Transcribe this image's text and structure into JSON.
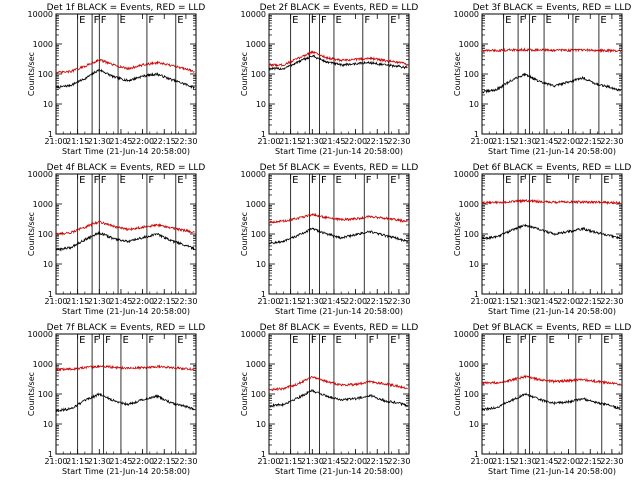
{
  "chart_data": [
    {
      "type": "line",
      "title": "Det 1f BLACK = Events, RED = LLD",
      "xlabel": "Start Time (21-Jun-14 20:58:00)",
      "ylabel": "Counts/sec",
      "xlim": [
        "21:00",
        "22:37"
      ],
      "ylim": [
        1,
        10000
      ],
      "yscale": "log",
      "xticks": [
        "21:00",
        "21:15",
        "21:30",
        "21:45",
        "22:00",
        "22:15",
        "22:30"
      ],
      "yticks": [
        "1",
        "10",
        "100",
        "1000",
        "10000"
      ],
      "x": [
        "21:00",
        "21:10",
        "21:20",
        "21:30",
        "21:40",
        "21:50",
        "22:00",
        "22:10",
        "22:20",
        "22:30",
        "22:36"
      ],
      "series": [
        {
          "color": "#000000",
          "values": [
            35,
            42,
            70,
            140,
            80,
            60,
            85,
            100,
            65,
            45,
            35
          ]
        },
        {
          "color": "#cc0000",
          "values": [
            110,
            120,
            180,
            300,
            200,
            150,
            200,
            240,
            190,
            150,
            120
          ]
        }
      ],
      "markers": [
        {
          "time": "21:15",
          "label": "E"
        },
        {
          "time": "21:25",
          "label": "F"
        },
        {
          "time": "21:30",
          "label": "F"
        },
        {
          "time": "21:43",
          "label": "E"
        },
        {
          "time": "22:03",
          "label": "F"
        },
        {
          "time": "22:23",
          "label": "E"
        }
      ]
    },
    {
      "type": "line",
      "title": "Det 2f BLACK = Events, RED = LLD",
      "xlabel": "Start Time (21-Jun-14 20:58:00)",
      "ylabel": "Counts/sec",
      "xlim": [
        "21:00",
        "22:37"
      ],
      "ylim": [
        1,
        10000
      ],
      "yscale": "log",
      "xticks": [
        "21:00",
        "21:15",
        "21:30",
        "21:45",
        "22:00",
        "22:15",
        "22:30"
      ],
      "yticks": [
        "1",
        "10",
        "100",
        "1000",
        "10000"
      ],
      "x": [
        "21:00",
        "21:10",
        "21:20",
        "21:30",
        "21:40",
        "21:50",
        "22:00",
        "22:10",
        "22:20",
        "22:30",
        "22:36"
      ],
      "series": [
        {
          "color": "#000000",
          "values": [
            150,
            150,
            250,
            400,
            250,
            200,
            220,
            240,
            200,
            180,
            160
          ]
        },
        {
          "color": "#cc0000",
          "values": [
            200,
            200,
            330,
            550,
            350,
            280,
            310,
            340,
            280,
            240,
            210
          ]
        }
      ],
      "markers": [
        {
          "time": "21:15",
          "label": "E"
        },
        {
          "time": "21:28",
          "label": "F"
        },
        {
          "time": "21:35",
          "label": "F"
        },
        {
          "time": "21:45",
          "label": "E"
        },
        {
          "time": "22:05",
          "label": "F"
        },
        {
          "time": "22:23",
          "label": "E"
        }
      ]
    },
    {
      "type": "line",
      "title": "Det 3f BLACK = Events, RED = LLD",
      "xlabel": "Start Time (21-Jun-14 20:58:00)",
      "ylabel": "Counts/sec",
      "xlim": [
        "21:00",
        "22:37"
      ],
      "ylim": [
        1,
        10000
      ],
      "yscale": "log",
      "xticks": [
        "21:00",
        "21:15",
        "21:30",
        "21:45",
        "22:00",
        "22:15",
        "22:30"
      ],
      "yticks": [
        "1",
        "10",
        "100",
        "1000",
        "10000"
      ],
      "x": [
        "21:00",
        "21:10",
        "21:20",
        "21:30",
        "21:40",
        "21:50",
        "22:00",
        "22:10",
        "22:20",
        "22:30",
        "22:36"
      ],
      "series": [
        {
          "color": "#000000",
          "values": [
            25,
            30,
            60,
            100,
            55,
            40,
            55,
            75,
            45,
            35,
            28
          ]
        },
        {
          "color": "#cc0000",
          "values": [
            600,
            610,
            630,
            650,
            630,
            620,
            620,
            630,
            610,
            600,
            590
          ]
        }
      ],
      "markers": [
        {
          "time": "21:15",
          "label": "E"
        },
        {
          "time": "21:25",
          "label": "F"
        },
        {
          "time": "21:33",
          "label": "F"
        },
        {
          "time": "21:43",
          "label": "E"
        },
        {
          "time": "22:03",
          "label": "F"
        },
        {
          "time": "22:21",
          "label": "E"
        }
      ]
    },
    {
      "type": "line",
      "title": "Det 4f BLACK = Events, RED = LLD",
      "xlabel": "Start Time (21-Jun-14 20:58:00)",
      "ylabel": "Counts/sec",
      "xlim": [
        "21:00",
        "22:37"
      ],
      "ylim": [
        1,
        10000
      ],
      "yscale": "log",
      "xticks": [
        "21:00",
        "21:15",
        "21:30",
        "21:45",
        "22:00",
        "22:15",
        "22:30"
      ],
      "yticks": [
        "1",
        "10",
        "100",
        "1000",
        "10000"
      ],
      "x": [
        "21:00",
        "21:10",
        "21:20",
        "21:30",
        "21:40",
        "21:50",
        "22:00",
        "22:10",
        "22:20",
        "22:30",
        "22:36"
      ],
      "series": [
        {
          "color": "#000000",
          "values": [
            30,
            35,
            65,
            110,
            70,
            55,
            75,
            100,
            60,
            42,
            32
          ]
        },
        {
          "color": "#cc0000",
          "values": [
            100,
            110,
            170,
            260,
            180,
            140,
            170,
            200,
            160,
            130,
            110
          ]
        }
      ],
      "markers": [
        {
          "time": "21:15",
          "label": "E"
        },
        {
          "time": "21:25",
          "label": "F"
        },
        {
          "time": "21:30",
          "label": "F"
        },
        {
          "time": "21:43",
          "label": "E"
        },
        {
          "time": "22:03",
          "label": "F"
        },
        {
          "time": "22:23",
          "label": "E"
        }
      ]
    },
    {
      "type": "line",
      "title": "Det 5f BLACK = Events, RED = LLD",
      "xlabel": "Start Time (21-Jun-14 20:58:00)",
      "ylabel": "Counts/sec",
      "xlim": [
        "21:00",
        "22:37"
      ],
      "ylim": [
        1,
        10000
      ],
      "yscale": "log",
      "xticks": [
        "21:00",
        "21:15",
        "21:30",
        "21:45",
        "22:00",
        "22:15",
        "22:30"
      ],
      "yticks": [
        "1",
        "10",
        "100",
        "1000",
        "10000"
      ],
      "x": [
        "21:00",
        "21:10",
        "21:20",
        "21:30",
        "21:40",
        "21:50",
        "22:00",
        "22:10",
        "22:20",
        "22:30",
        "22:36"
      ],
      "series": [
        {
          "color": "#000000",
          "values": [
            50,
            55,
            90,
            150,
            100,
            75,
            95,
            120,
            90,
            70,
            55
          ]
        },
        {
          "color": "#cc0000",
          "values": [
            250,
            270,
            330,
            450,
            350,
            300,
            320,
            380,
            340,
            290,
            260
          ]
        }
      ],
      "markers": [
        {
          "time": "21:15",
          "label": "E"
        },
        {
          "time": "21:28",
          "label": "F"
        },
        {
          "time": "21:35",
          "label": "F"
        },
        {
          "time": "21:45",
          "label": "E"
        },
        {
          "time": "22:06",
          "label": "F"
        },
        {
          "time": "22:23",
          "label": "E"
        }
      ]
    },
    {
      "type": "line",
      "title": "Det 6f BLACK = Events, RED = LLD",
      "xlabel": "Start Time (21-Jun-14 20:58:00)",
      "ylabel": "Counts/sec",
      "xlim": [
        "21:00",
        "22:37"
      ],
      "ylim": [
        1,
        10000
      ],
      "yscale": "log",
      "xticks": [
        "21:00",
        "21:15",
        "21:30",
        "21:45",
        "22:00",
        "22:15",
        "22:30"
      ],
      "yticks": [
        "1",
        "10",
        "100",
        "1000",
        "10000"
      ],
      "x": [
        "21:00",
        "21:10",
        "21:20",
        "21:30",
        "21:40",
        "21:50",
        "22:00",
        "22:10",
        "22:20",
        "22:30",
        "22:36"
      ],
      "series": [
        {
          "color": "#000000",
          "values": [
            70,
            80,
            130,
            200,
            140,
            100,
            120,
            150,
            110,
            85,
            70
          ]
        },
        {
          "color": "#cc0000",
          "values": [
            1100,
            1120,
            1180,
            1280,
            1200,
            1150,
            1160,
            1180,
            1150,
            1120,
            1100
          ]
        }
      ],
      "markers": [
        {
          "time": "21:15",
          "label": "E"
        },
        {
          "time": "21:25",
          "label": "F"
        },
        {
          "time": "21:33",
          "label": "F"
        },
        {
          "time": "21:43",
          "label": "E"
        },
        {
          "time": "22:03",
          "label": "F"
        },
        {
          "time": "22:23",
          "label": "E"
        }
      ]
    },
    {
      "type": "line",
      "title": "Det 7f BLACK = Events, RED = LLD",
      "xlabel": "Start Time (21-Jun-14 20:58:00)",
      "ylabel": "Counts/sec",
      "xlim": [
        "21:00",
        "22:37"
      ],
      "ylim": [
        1,
        10000
      ],
      "yscale": "log",
      "xticks": [
        "21:00",
        "21:15",
        "21:30",
        "21:45",
        "22:00",
        "22:15",
        "22:30"
      ],
      "yticks": [
        "1",
        "10",
        "100",
        "1000",
        "10000"
      ],
      "x": [
        "21:00",
        "21:10",
        "21:20",
        "21:30",
        "21:40",
        "21:50",
        "22:00",
        "22:10",
        "22:20",
        "22:30",
        "22:36"
      ],
      "series": [
        {
          "color": "#000000",
          "values": [
            28,
            32,
            60,
            100,
            60,
            45,
            65,
            85,
            50,
            38,
            30
          ]
        },
        {
          "color": "#cc0000",
          "values": [
            650,
            680,
            750,
            850,
            780,
            720,
            760,
            820,
            760,
            700,
            650
          ]
        }
      ],
      "markers": [
        {
          "time": "21:15",
          "label": "E"
        },
        {
          "time": "21:25",
          "label": "F"
        },
        {
          "time": "21:33",
          "label": "F"
        },
        {
          "time": "21:45",
          "label": "E"
        },
        {
          "time": "22:03",
          "label": "F"
        },
        {
          "time": "22:23",
          "label": "E"
        }
      ]
    },
    {
      "type": "line",
      "title": "Det 8f BLACK = Events, RED = LLD",
      "xlabel": "Start Time (21-Jun-14 20:58:00)",
      "ylabel": "Counts/sec",
      "xlim": [
        "21:00",
        "22:37"
      ],
      "ylim": [
        1,
        10000
      ],
      "yscale": "log",
      "xticks": [
        "21:00",
        "21:15",
        "21:30",
        "21:45",
        "22:00",
        "22:15",
        "22:30"
      ],
      "yticks": [
        "1",
        "10",
        "100",
        "1000",
        "10000"
      ],
      "x": [
        "21:00",
        "21:10",
        "21:20",
        "21:30",
        "21:40",
        "21:50",
        "22:00",
        "22:10",
        "22:20",
        "22:30",
        "22:36"
      ],
      "series": [
        {
          "color": "#000000",
          "values": [
            40,
            45,
            75,
            130,
            85,
            65,
            70,
            90,
            60,
            50,
            40
          ]
        },
        {
          "color": "#cc0000",
          "values": [
            140,
            150,
            220,
            380,
            260,
            200,
            210,
            260,
            220,
            180,
            150
          ]
        }
      ],
      "markers": [
        {
          "time": "21:15",
          "label": "E"
        },
        {
          "time": "21:28",
          "label": "F"
        },
        {
          "time": "21:35",
          "label": "F"
        },
        {
          "time": "21:45",
          "label": "E"
        },
        {
          "time": "22:08",
          "label": "F"
        },
        {
          "time": "22:23",
          "label": "E"
        }
      ]
    },
    {
      "type": "line",
      "title": "Det 9f BLACK = Events, RED = LLD",
      "xlabel": "Start Time (21-Jun-14 20:58:00)",
      "ylabel": "Counts/sec",
      "xlim": [
        "21:00",
        "22:37"
      ],
      "ylim": [
        1,
        10000
      ],
      "yscale": "log",
      "xticks": [
        "21:00",
        "21:15",
        "21:30",
        "21:45",
        "22:00",
        "22:15",
        "22:30"
      ],
      "yticks": [
        "1",
        "10",
        "100",
        "1000",
        "10000"
      ],
      "x": [
        "21:00",
        "21:10",
        "21:20",
        "21:30",
        "21:40",
        "21:50",
        "22:00",
        "22:10",
        "22:20",
        "22:30",
        "22:36"
      ],
      "series": [
        {
          "color": "#000000",
          "values": [
            30,
            35,
            60,
            100,
            65,
            50,
            55,
            70,
            50,
            40,
            32
          ]
        },
        {
          "color": "#cc0000",
          "values": [
            230,
            240,
            290,
            380,
            300,
            260,
            280,
            300,
            260,
            230,
            210
          ]
        }
      ],
      "markers": [
        {
          "time": "21:15",
          "label": "E"
        },
        {
          "time": "21:25",
          "label": "F"
        },
        {
          "time": "21:33",
          "label": "F"
        },
        {
          "time": "21:45",
          "label": "E"
        },
        {
          "time": "22:05",
          "label": "F"
        },
        {
          "time": "22:23",
          "label": "E"
        }
      ]
    }
  ]
}
